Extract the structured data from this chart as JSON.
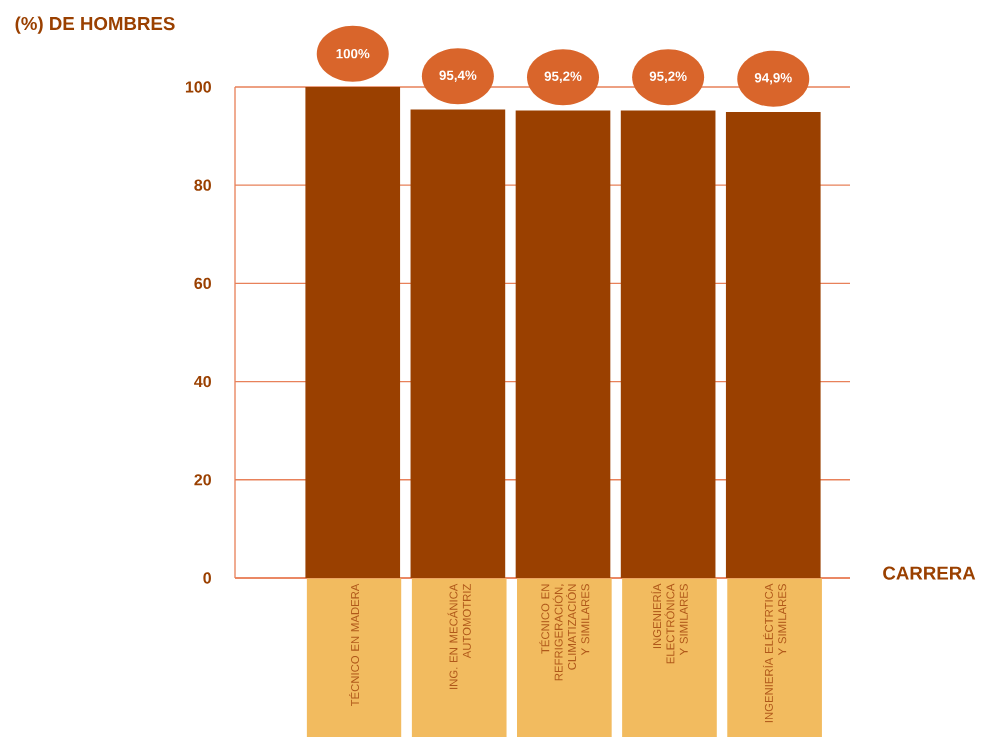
{
  "chart_data": {
    "type": "bar",
    "ylabel": "(%) DE HOMBRES",
    "xlabel": "CARRERA",
    "categories": [
      "TÉCNICO EN MADERA",
      "ING. EN MECÁNICA AUTOMOTRIZ",
      "TÉCNICO EN REFRIGERACIÓN, CLIMATIZACIÓN Y SIMILARES",
      "INGENIERÍA ELECTRÓNICA Y SIMILARES",
      "INGENIERÍA ELÉCTRTICA Y SIMILARES"
    ],
    "values": [
      100,
      95.4,
      95.2,
      95.2,
      94.9
    ],
    "value_labels": [
      "100%",
      "95,4%",
      "95,2%",
      "95,2%",
      "94,9%"
    ],
    "color": "#9a4000",
    "ylim": [
      0,
      100
    ],
    "yticks": [
      0,
      20,
      40,
      60,
      80,
      100
    ],
    "grid": "y"
  }
}
